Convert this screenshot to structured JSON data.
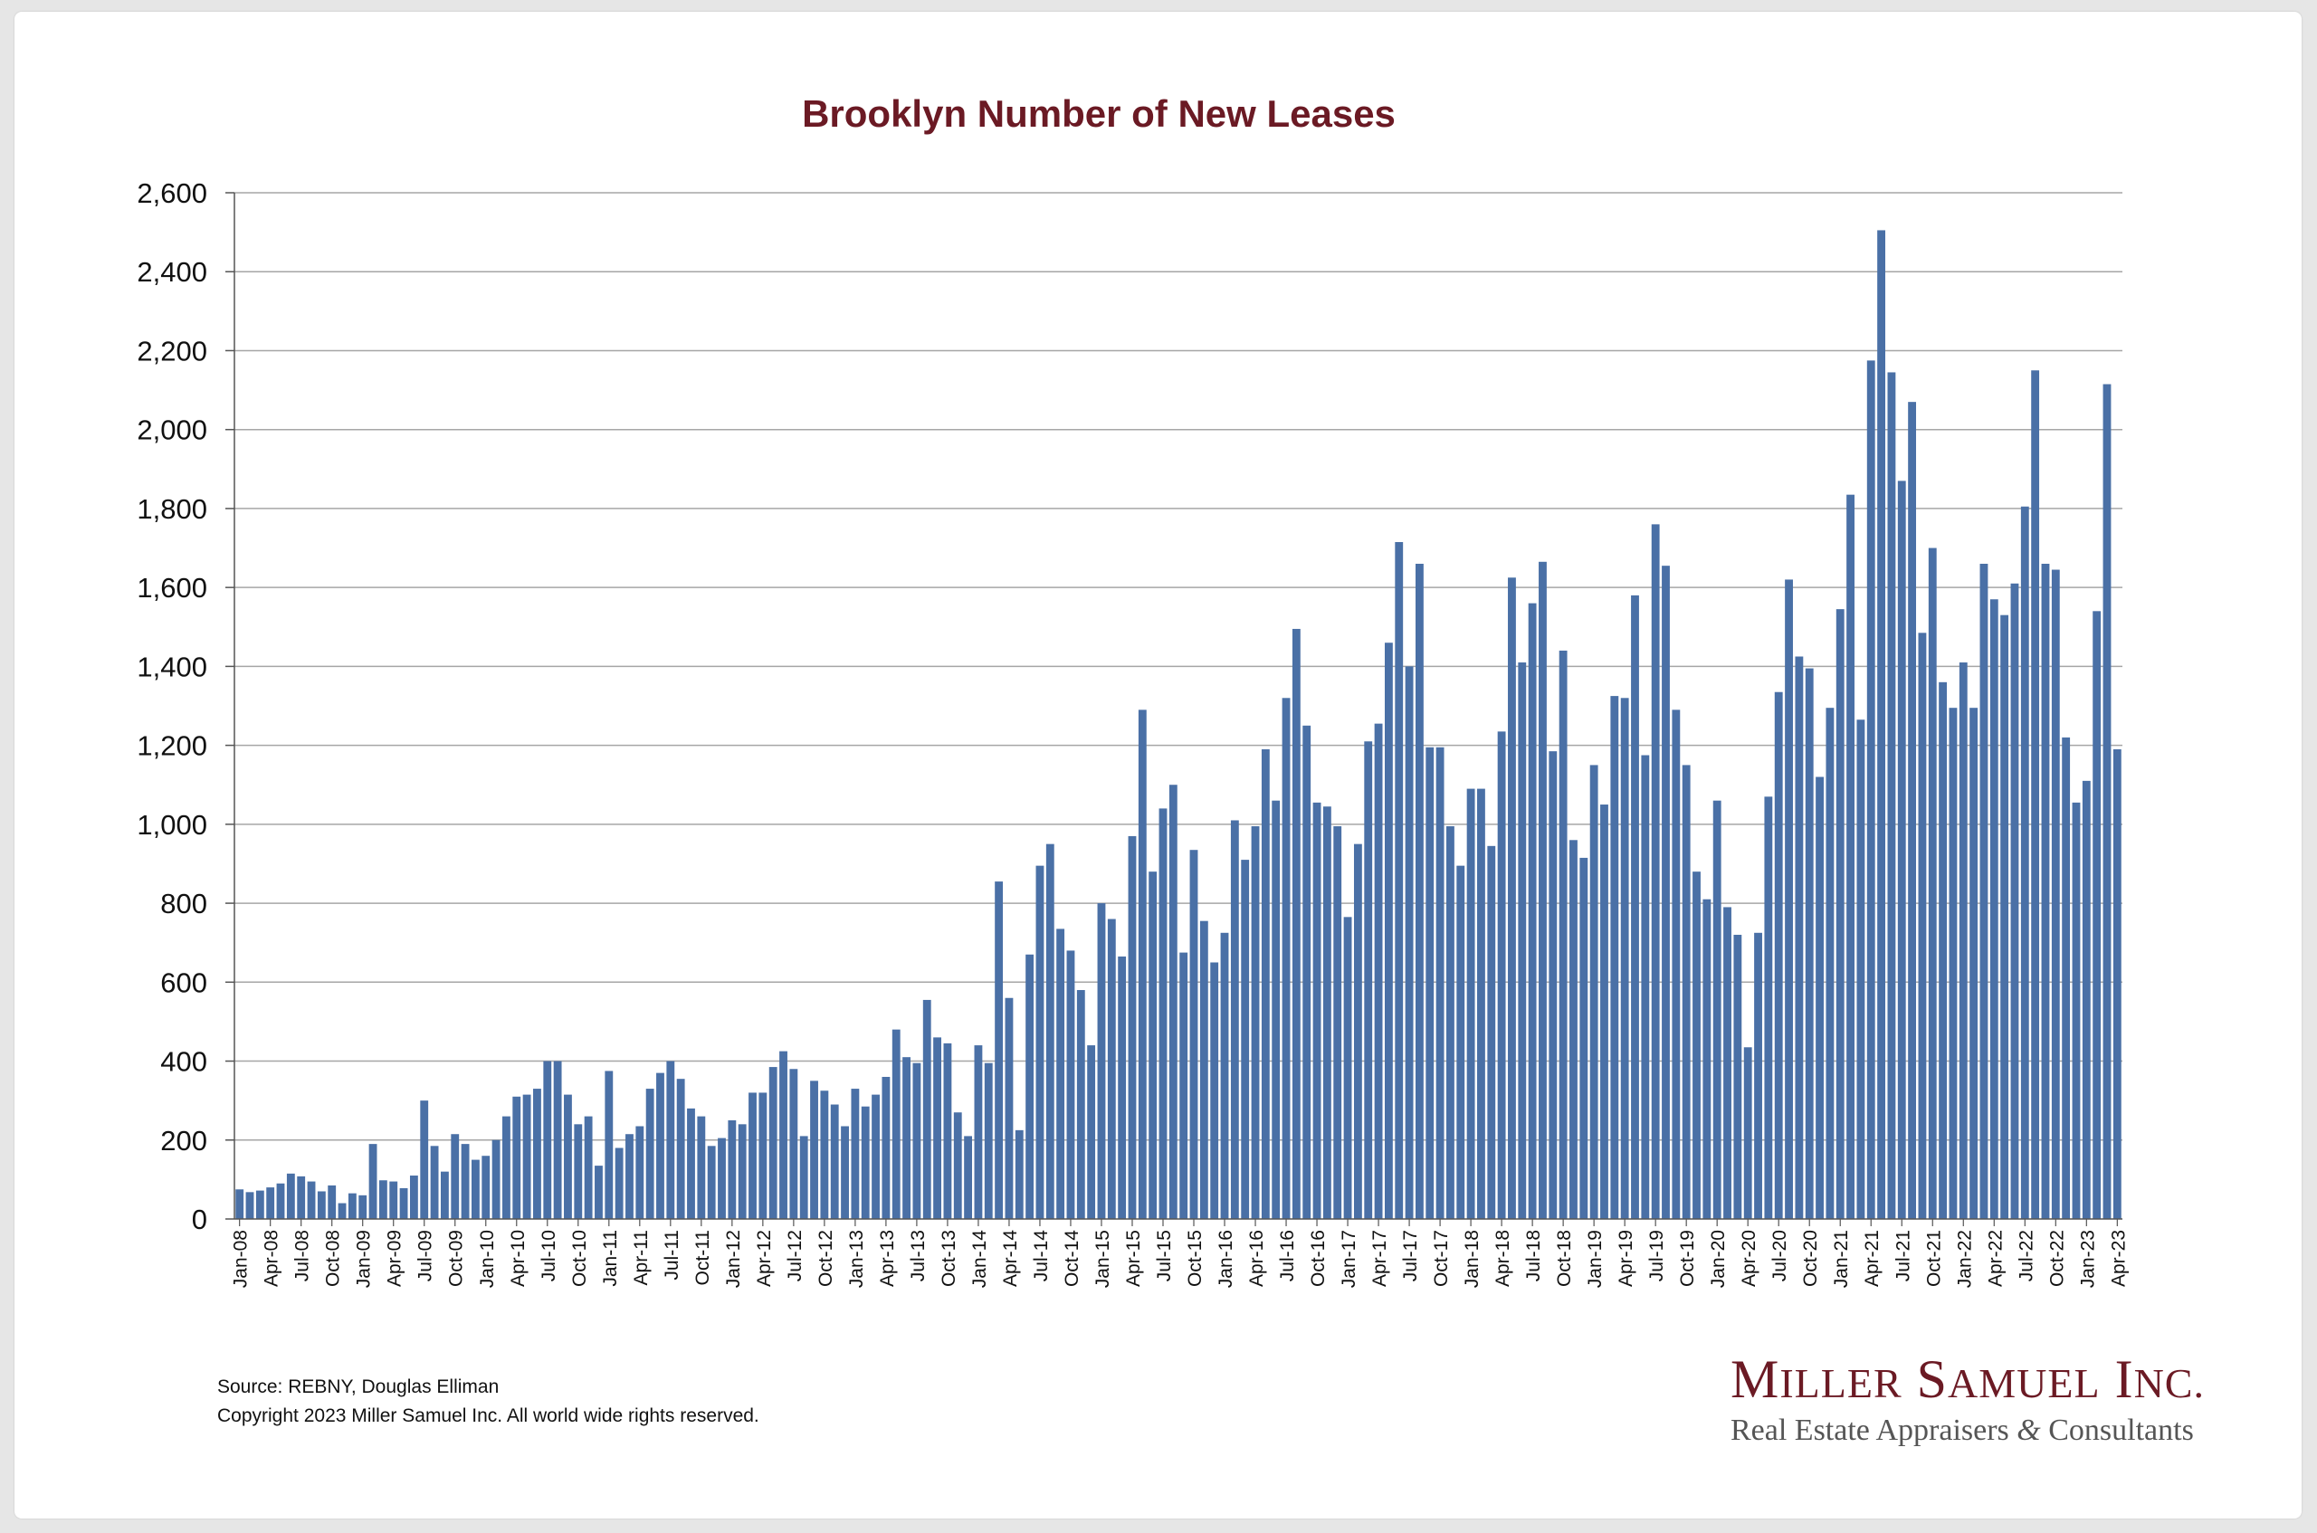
{
  "footer": {
    "source": "Source: REBNY, Douglas Elliman",
    "copyright": "Copyright 2023 Miller Samuel Inc.  All world wide rights reserved."
  },
  "logo": {
    "name": "Miller Samuel Inc.",
    "tagline": "Real Estate Appraisers & Consultants"
  },
  "colors": {
    "bar": "#4a70a6",
    "title": "#6b1a24",
    "grid": "#a6a6a6"
  },
  "chart_data": {
    "type": "bar",
    "title": "Brooklyn Number of New Leases",
    "xlabel": "",
    "ylabel": "",
    "ylim": [
      0,
      2600
    ],
    "yticks": [
      0,
      200,
      400,
      600,
      800,
      1000,
      1200,
      1400,
      1600,
      1800,
      2000,
      2200,
      2400,
      2600
    ],
    "ytick_labels": [
      "0",
      "200",
      "400",
      "600",
      "800",
      "1,000",
      "1,200",
      "1,400",
      "1,600",
      "1,800",
      "2,000",
      "2,200",
      "2,400",
      "2,600"
    ],
    "grid": "horizontal",
    "x_start": "Jan-08",
    "x_tick_labels": [
      "Jan-08",
      "Apr-08",
      "Jul-08",
      "Oct-08",
      "Jan-09",
      "Apr-09",
      "Jul-09",
      "Oct-09",
      "Jan-10",
      "Apr-10",
      "Jul-10",
      "Oct-10",
      "Jan-11",
      "Apr-11",
      "Jul-11",
      "Oct-11",
      "Jan-12",
      "Apr-12",
      "Jul-12",
      "Oct-12",
      "Jan-13",
      "Apr-13",
      "Jul-13",
      "Oct-13",
      "Jan-14",
      "Apr-14",
      "Jul-14",
      "Oct-14",
      "Jan-15",
      "Apr-15",
      "Jul-15",
      "Oct-15",
      "Jan-16",
      "Apr-16",
      "Jul-16",
      "Oct-16",
      "Jan-17",
      "Apr-17",
      "Jul-17",
      "Oct-17",
      "Jan-18",
      "Apr-18",
      "Jul-18",
      "Oct-18",
      "Jan-19",
      "Apr-19",
      "Jul-19",
      "Oct-19",
      "Jan-20",
      "Apr-20",
      "Jul-20",
      "Oct-20",
      "Jan-21",
      "Apr-21",
      "Jul-21",
      "Oct-21",
      "Jan-22",
      "Apr-22",
      "Jul-22",
      "Oct-22",
      "Jan-23",
      "Apr-23"
    ],
    "values": [
      75,
      68,
      72,
      80,
      90,
      115,
      108,
      95,
      70,
      85,
      40,
      65,
      60,
      190,
      98,
      95,
      78,
      110,
      300,
      185,
      120,
      215,
      190,
      150,
      160,
      200,
      260,
      310,
      315,
      330,
      400,
      400,
      315,
      240,
      260,
      135,
      375,
      180,
      215,
      235,
      330,
      370,
      400,
      355,
      280,
      260,
      185,
      205,
      250,
      240,
      320,
      320,
      385,
      425,
      380,
      210,
      350,
      325,
      290,
      235,
      330,
      285,
      315,
      360,
      480,
      410,
      395,
      555,
      460,
      445,
      270,
      210,
      440,
      395,
      855,
      560,
      225,
      670,
      895,
      950,
      735,
      680,
      580,
      440,
      800,
      760,
      665,
      970,
      1290,
      880,
      1040,
      1100,
      675,
      935,
      755,
      650,
      725,
      1010,
      910,
      995,
      1190,
      1060,
      1320,
      1495,
      1250,
      1055,
      1045,
      995,
      765,
      950,
      1210,
      1255,
      1460,
      1715,
      1400,
      1660,
      1195,
      1195,
      995,
      895,
      1090,
      1090,
      945,
      1235,
      1625,
      1410,
      1560,
      1665,
      1185,
      1440,
      960,
      915,
      1150,
      1050,
      1325,
      1320,
      1580,
      1175,
      1760,
      1655,
      1290,
      1150,
      880,
      810,
      1060,
      790,
      720,
      435,
      725,
      1070,
      1335,
      1620,
      1425,
      1395,
      1120,
      1295,
      1545,
      1835,
      1265,
      2175,
      2505,
      2145,
      1870,
      2070,
      1485,
      1700,
      1360,
      1295,
      1410,
      1295,
      1660,
      1570,
      1530,
      1610,
      1805,
      2150,
      1660,
      1645,
      1220,
      1055,
      1110,
      1540,
      2115,
      1190
    ]
  }
}
